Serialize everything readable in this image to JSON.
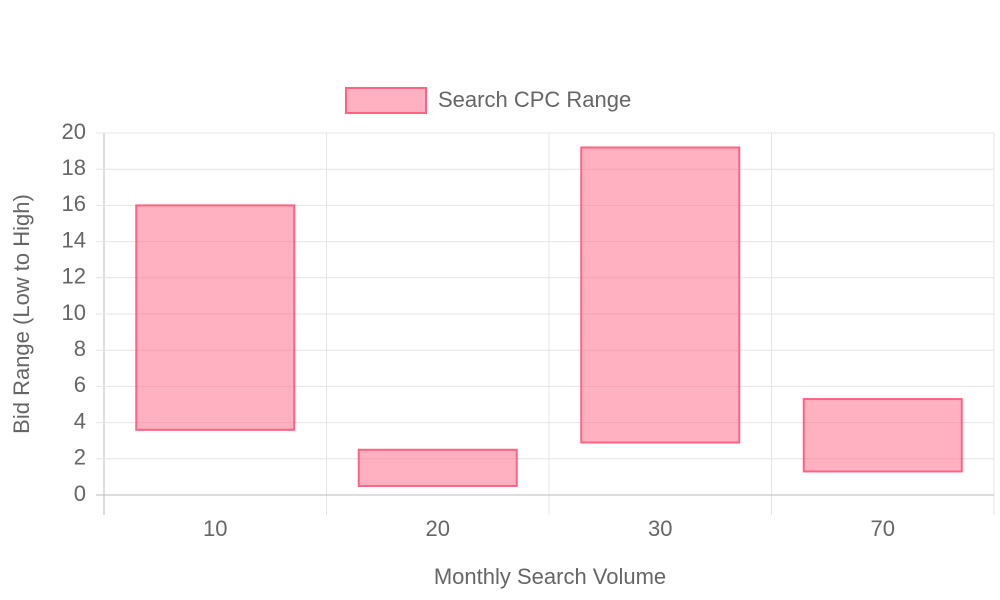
{
  "chart_data": {
    "type": "floating-bar",
    "categories": [
      "10",
      "20",
      "30",
      "70"
    ],
    "series": [
      {
        "name": "Search CPC Range",
        "color": "#ff6384",
        "low": [
          3.6,
          0.5,
          2.9,
          1.3
        ],
        "high": [
          16,
          2.5,
          19.2,
          5.3
        ]
      }
    ],
    "x_label": "Monthly Search Volume",
    "y_label": "Bid Range (Low to High)",
    "ylim": [
      0,
      20
    ],
    "yticks": [
      0,
      2,
      4,
      6,
      8,
      10,
      12,
      14,
      16,
      18,
      20
    ],
    "grid": true,
    "legend": "top"
  }
}
